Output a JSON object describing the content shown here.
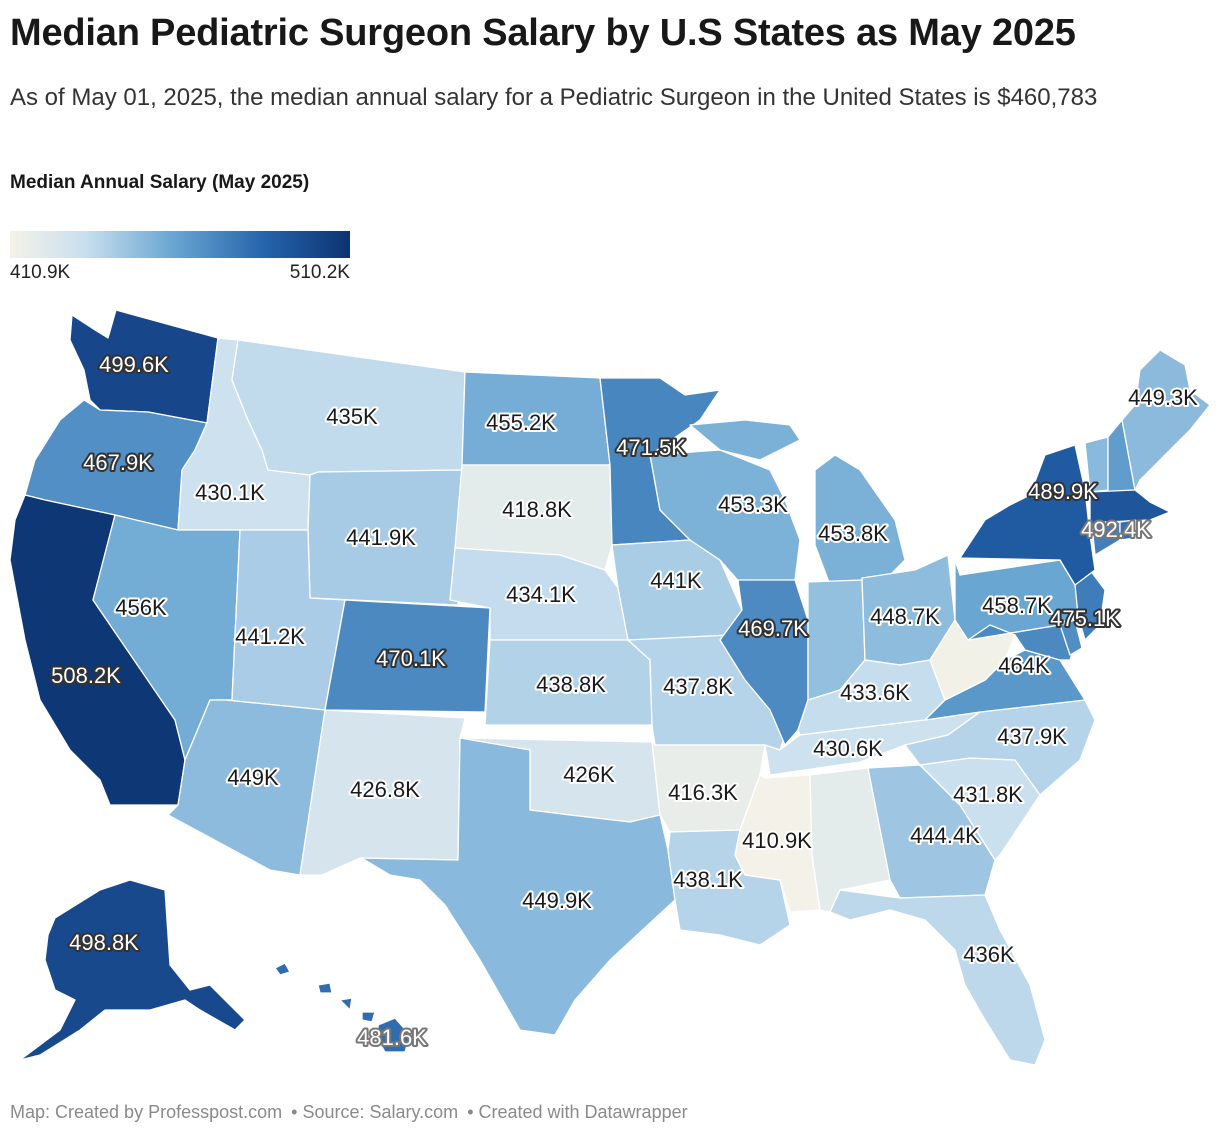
{
  "title": "Median Pediatric Surgeon Salary by U.S States as May 2025",
  "subtitle": "As of May 01, 2025, the median annual salary for a Pediatric Surgeon in the United States is $460,783",
  "legend": {
    "title": "Median Annual Salary (May 2025)",
    "min_label": "410.9K",
    "max_label": "510.2K",
    "min": 410.9,
    "max": 510.2,
    "colors": [
      "#f4f2e8",
      "#c9dfef",
      "#69a6d2",
      "#2563ab",
      "#0c3371"
    ]
  },
  "footer": {
    "map_credit": "Map: Created by Professpost.com",
    "source": "• Source: Salary.com",
    "tool": "• Created with Datawrapper"
  },
  "chart_data": {
    "type": "choropleth",
    "unit": "K USD",
    "states": [
      {
        "id": "WA",
        "label": "499.6K",
        "value": 499.6
      },
      {
        "id": "OR",
        "label": "467.9K",
        "value": 467.9
      },
      {
        "id": "CA",
        "label": "508.2K",
        "value": 508.2
      },
      {
        "id": "ID",
        "label": "430.1K",
        "value": 430.1
      },
      {
        "id": "NV",
        "label": "456K",
        "value": 456.0
      },
      {
        "id": "MT",
        "label": "435K",
        "value": 435.0
      },
      {
        "id": "WY",
        "label": "441.9K",
        "value": 441.9
      },
      {
        "id": "UT",
        "label": "441.2K",
        "value": 441.2
      },
      {
        "id": "AZ",
        "label": "449K",
        "value": 449.0
      },
      {
        "id": "CO",
        "label": "470.1K",
        "value": 470.1
      },
      {
        "id": "NM",
        "label": "426.8K",
        "value": 426.8
      },
      {
        "id": "ND",
        "label": "455.2K",
        "value": 455.2
      },
      {
        "id": "SD",
        "label": "418.8K",
        "value": 418.8
      },
      {
        "id": "NE",
        "label": "434.1K",
        "value": 434.1
      },
      {
        "id": "KS",
        "label": "438.8K",
        "value": 438.8
      },
      {
        "id": "OK",
        "label": "426K",
        "value": 426.0
      },
      {
        "id": "TX",
        "label": "449.9K",
        "value": 449.9
      },
      {
        "id": "MN",
        "label": "471.5K",
        "value": 471.5
      },
      {
        "id": "IA",
        "label": "441K",
        "value": 441.0
      },
      {
        "id": "MO",
        "label": "437.8K",
        "value": 437.8
      },
      {
        "id": "AR",
        "label": "416.3K",
        "value": 416.3
      },
      {
        "id": "LA",
        "label": "438.1K",
        "value": 438.1
      },
      {
        "id": "WI",
        "label": "453.3K",
        "value": 453.3
      },
      {
        "id": "IL",
        "label": "469.7K",
        "value": 469.7
      },
      {
        "id": "MI",
        "label": "453.8K",
        "value": 453.8
      },
      {
        "id": "OH",
        "label": "448.7K",
        "value": 448.7
      },
      {
        "id": "KY",
        "label": "433.6K",
        "value": 433.6
      },
      {
        "id": "TN",
        "label": "430.6K",
        "value": 430.6
      },
      {
        "id": "MS",
        "label": "410.9K",
        "value": 410.9
      },
      {
        "id": "GA",
        "label": "444.4K",
        "value": 444.4
      },
      {
        "id": "FL",
        "label": "436K",
        "value": 436.0
      },
      {
        "id": "SC",
        "label": "431.8K",
        "value": 431.8
      },
      {
        "id": "NC",
        "label": "437.9K",
        "value": 437.9
      },
      {
        "id": "VA",
        "label": "464K",
        "value": 464.0
      },
      {
        "id": "PA",
        "label": "458.7K",
        "value": 458.7
      },
      {
        "id": "NY",
        "label": "489.9K",
        "value": 489.9
      },
      {
        "id": "MA",
        "label": "492.4K",
        "value": 492.4
      },
      {
        "id": "NJ",
        "label": "475.1K",
        "value": 475.1
      },
      {
        "id": "ME",
        "label": "449.3K",
        "value": 449.3
      },
      {
        "id": "AK",
        "label": "498.8K",
        "value": 498.8
      },
      {
        "id": "HI",
        "label": "481.6K",
        "value": 481.6
      },
      {
        "id": "IN",
        "label": "",
        "value": null
      },
      {
        "id": "AL",
        "label": "",
        "value": null
      },
      {
        "id": "WV",
        "label": "",
        "value": null
      },
      {
        "id": "MD",
        "label": "",
        "value": null
      },
      {
        "id": "VT",
        "label": "",
        "value": null
      },
      {
        "id": "NH",
        "label": "",
        "value": null
      },
      {
        "id": "CT",
        "label": "",
        "value": null
      },
      {
        "id": "RI",
        "label": "",
        "value": null
      },
      {
        "id": "DE",
        "label": "",
        "value": null
      }
    ]
  }
}
